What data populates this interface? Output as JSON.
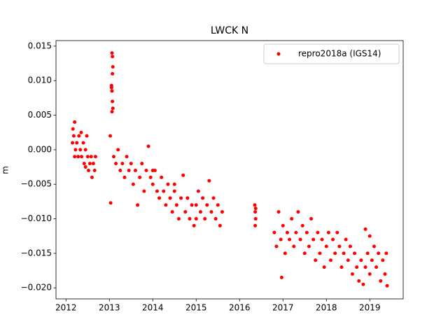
{
  "chart_data": {
    "type": "scatter",
    "title": "LWCK N",
    "y_label": "m",
    "xlim": [
      2011.77,
      2019.77
    ],
    "ylim": [
      -0.0216,
      0.0158
    ],
    "xticks": [
      2012,
      2013,
      2014,
      2015,
      2016,
      2017,
      2018,
      2019
    ],
    "yticks": [
      {
        "value": 0.015,
        "label": "0.015"
      },
      {
        "value": 0.01,
        "label": "0.010"
      },
      {
        "value": 0.005,
        "label": "0.005"
      },
      {
        "value": 0,
        "label": "0.000"
      },
      {
        "value": -0.005,
        "label": "−0.005"
      },
      {
        "value": -0.01,
        "label": "−0.010"
      },
      {
        "value": -0.015,
        "label": "−0.015"
      },
      {
        "value": -0.02,
        "label": "−0.020"
      }
    ],
    "grid": false,
    "legend": "upper right",
    "series": [
      {
        "name": "repro2018a (IGS14)",
        "color": "#ff0000",
        "x": [
          2012.15,
          2012.16,
          2012.18,
          2012.2,
          2012.22,
          2012.25,
          2012.28,
          2012.3,
          2012.33,
          2012.36,
          2012.4,
          2012.42,
          2012.45,
          2012.48,
          2012.5,
          2012.52,
          2012.55,
          2012.58,
          2012.6,
          2012.63,
          2012.66,
          2012.68,
          2012.2,
          2012.35,
          2012.45,
          2013.02,
          2013.03,
          2013.05,
          2013.06,
          2013.07,
          2013.08,
          2013.07,
          2013.05,
          2013.06,
          2013.07,
          2013.08,
          2013.06,
          2013.1,
          2013.15,
          2013.2,
          2013.25,
          2013.3,
          2013.35,
          2013.4,
          2013.45,
          2013.5,
          2013.55,
          2013.6,
          2013.65,
          2013.7,
          2013.75,
          2013.8,
          2013.85,
          2013.9,
          2013.95,
          2014.0,
          2014.05,
          2014.1,
          2014.15,
          2014.2,
          2014.25,
          2014.3,
          2014.35,
          2014.4,
          2014.45,
          2014.5,
          2014.55,
          2014.6,
          2014.65,
          2014.7,
          2014.75,
          2014.8,
          2014.85,
          2014.9,
          2014.95,
          2015.0,
          2015.05,
          2015.1,
          2015.15,
          2015.2,
          2015.25,
          2015.3,
          2015.35,
          2015.4,
          2015.45,
          2015.5,
          2015.55,
          2015.6,
          2014.0,
          2014.5,
          2015.0,
          2016.35,
          2016.36,
          2016.37,
          2016.36,
          2016.37,
          2016.8,
          2016.85,
          2016.9,
          2016.95,
          2016.97,
          2017.0,
          2017.05,
          2017.1,
          2017.15,
          2017.2,
          2017.25,
          2017.3,
          2017.35,
          2017.4,
          2017.45,
          2017.5,
          2017.55,
          2017.6,
          2017.65,
          2017.7,
          2017.75,
          2017.8,
          2017.85,
          2017.9,
          2017.95,
          2018.0,
          2018.05,
          2018.1,
          2018.15,
          2018.2,
          2018.25,
          2018.3,
          2018.35,
          2018.4,
          2018.45,
          2018.5,
          2018.55,
          2018.6,
          2018.65,
          2018.7,
          2018.75,
          2018.8,
          2018.85,
          2018.9,
          2018.95,
          2019.0,
          2019.05,
          2019.1,
          2019.15,
          2019.2,
          2019.25,
          2019.3,
          2019.35,
          2019.4,
          2019.38,
          2018.9,
          2019.0
        ],
        "values": [
          0.001,
          0.003,
          0.002,
          0.004,
          0,
          0.001,
          -0.001,
          0.002,
          0,
          -0.001,
          0.001,
          -0.002,
          0,
          0.002,
          -0.001,
          -0.003,
          -0.002,
          -0.001,
          -0.004,
          -0.002,
          -0.003,
          -0.001,
          -0.001,
          0.0025,
          -0.0025,
          0.002,
          -0.0077,
          0.009,
          0.014,
          0.0135,
          0.012,
          0.011,
          0.0093,
          0.0085,
          0.007,
          0.006,
          0.0055,
          -0.001,
          -0.002,
          0,
          -0.003,
          -0.002,
          -0.004,
          -0.001,
          -0.003,
          -0.002,
          -0.005,
          -0.003,
          -0.008,
          -0.004,
          -0.002,
          -0.006,
          -0.003,
          0.0005,
          -0.004,
          -0.005,
          -0.003,
          -0.006,
          -0.007,
          -0.004,
          -0.006,
          -0.008,
          -0.005,
          -0.007,
          -0.009,
          -0.006,
          -0.008,
          -0.01,
          -0.007,
          -0.0037,
          -0.009,
          -0.007,
          -0.01,
          -0.008,
          -0.011,
          -0.008,
          -0.006,
          -0.009,
          -0.007,
          -0.01,
          -0.008,
          -0.0045,
          -0.009,
          -0.007,
          -0.01,
          -0.008,
          -0.011,
          -0.009,
          -0.003,
          -0.005,
          -0.01,
          -0.008,
          -0.009,
          -0.01,
          -0.011,
          -0.0085,
          -0.012,
          -0.014,
          -0.009,
          -0.013,
          -0.0185,
          -0.011,
          -0.015,
          -0.012,
          -0.013,
          -0.01,
          -0.014,
          -0.012,
          -0.009,
          -0.013,
          -0.011,
          -0.015,
          -0.012,
          -0.014,
          -0.01,
          -0.013,
          -0.016,
          -0.012,
          -0.015,
          -0.013,
          -0.017,
          -0.014,
          -0.012,
          -0.016,
          -0.013,
          -0.015,
          -0.012,
          -0.014,
          -0.017,
          -0.015,
          -0.013,
          -0.016,
          -0.014,
          -0.018,
          -0.015,
          -0.017,
          -0.019,
          -0.016,
          -0.0195,
          -0.017,
          -0.015,
          -0.018,
          -0.016,
          -0.014,
          -0.017,
          -0.015,
          -0.019,
          -0.016,
          -0.018,
          -0.0197,
          -0.015,
          -0.0115,
          -0.0125
        ]
      }
    ]
  }
}
